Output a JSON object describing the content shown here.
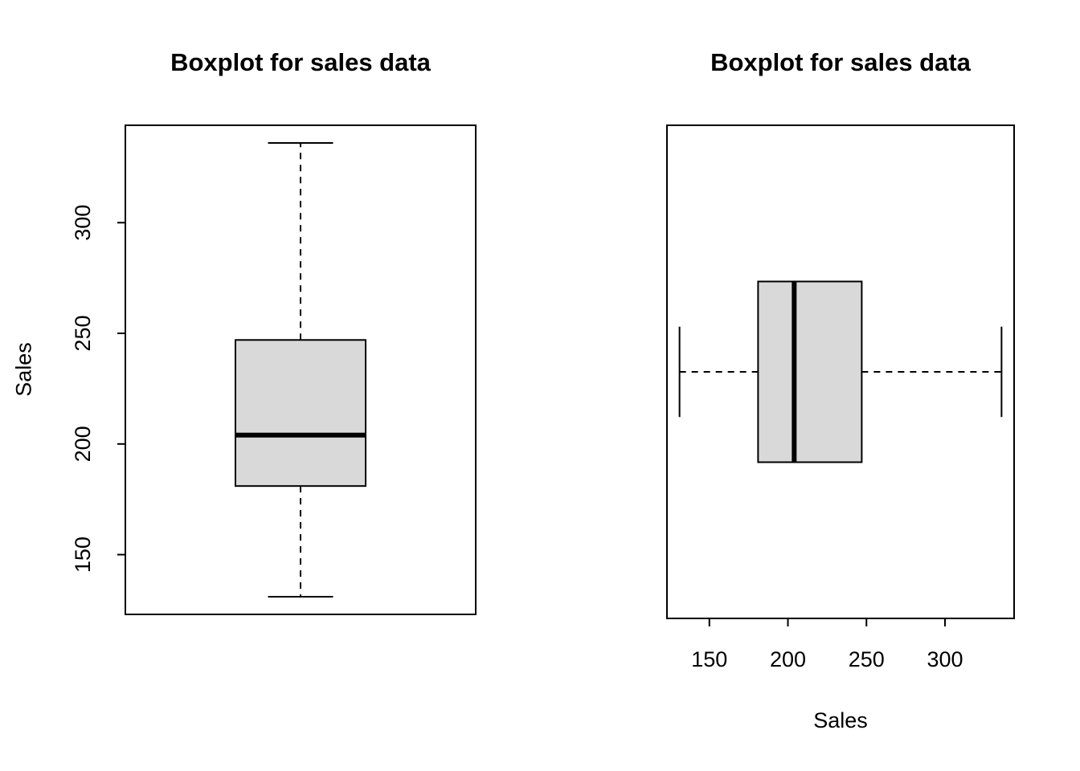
{
  "figure": {
    "background": "#ffffff",
    "text_color": "#000000"
  },
  "chart_data": [
    {
      "type": "boxplot",
      "orientation": "vertical",
      "title": "Boxplot for sales data",
      "xlabel": "",
      "ylabel": "Sales",
      "axis_ticks": [
        150,
        200,
        250,
        300
      ],
      "axis_range": [
        123,
        344
      ],
      "stats": {
        "min": 131,
        "q1": 181,
        "median": 204,
        "q3": 247,
        "max": 336
      },
      "box_fill": "#d9d9d9",
      "grid": false,
      "legend": false
    },
    {
      "type": "boxplot",
      "orientation": "horizontal",
      "title": "Boxplot for sales data",
      "xlabel": "Sales",
      "ylabel": "",
      "axis_ticks": [
        150,
        200,
        250,
        300
      ],
      "axis_range": [
        123,
        344
      ],
      "stats": {
        "min": 131,
        "q1": 181,
        "median": 204,
        "q3": 247,
        "max": 336
      },
      "box_fill": "#d9d9d9",
      "grid": false,
      "legend": false
    }
  ]
}
